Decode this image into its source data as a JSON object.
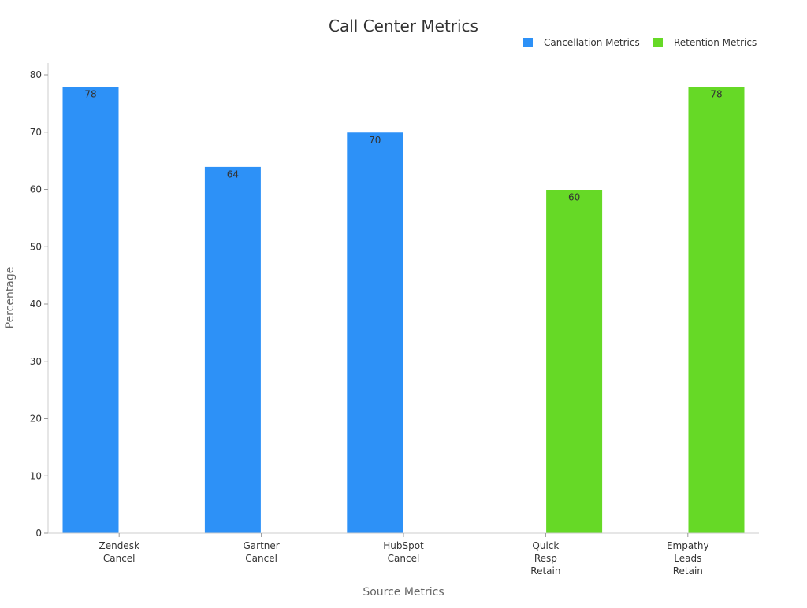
{
  "chart_data": {
    "type": "bar",
    "title": "Call Center Metrics",
    "xlabel": "Source Metrics",
    "ylabel": "Percentage",
    "ylim": [
      0,
      80
    ],
    "yticks": [
      0,
      10,
      20,
      30,
      40,
      50,
      60,
      70,
      80
    ],
    "grid": false,
    "legend_position": "top-right",
    "categories": [
      [
        "Zendesk",
        "Cancel"
      ],
      [
        "Gartner",
        "Cancel"
      ],
      [
        "HubSpot",
        "Cancel"
      ],
      [
        "Quick",
        "Resp",
        "Retain"
      ],
      [
        "Empathy",
        "Leads",
        "Retain"
      ]
    ],
    "series": [
      {
        "name": "Cancellation Metrics",
        "color": "#2d91f7",
        "values": [
          78,
          64,
          70,
          null,
          null
        ]
      },
      {
        "name": "Retention Metrics",
        "color": "#66d926",
        "values": [
          null,
          null,
          null,
          60,
          78
        ]
      }
    ]
  }
}
